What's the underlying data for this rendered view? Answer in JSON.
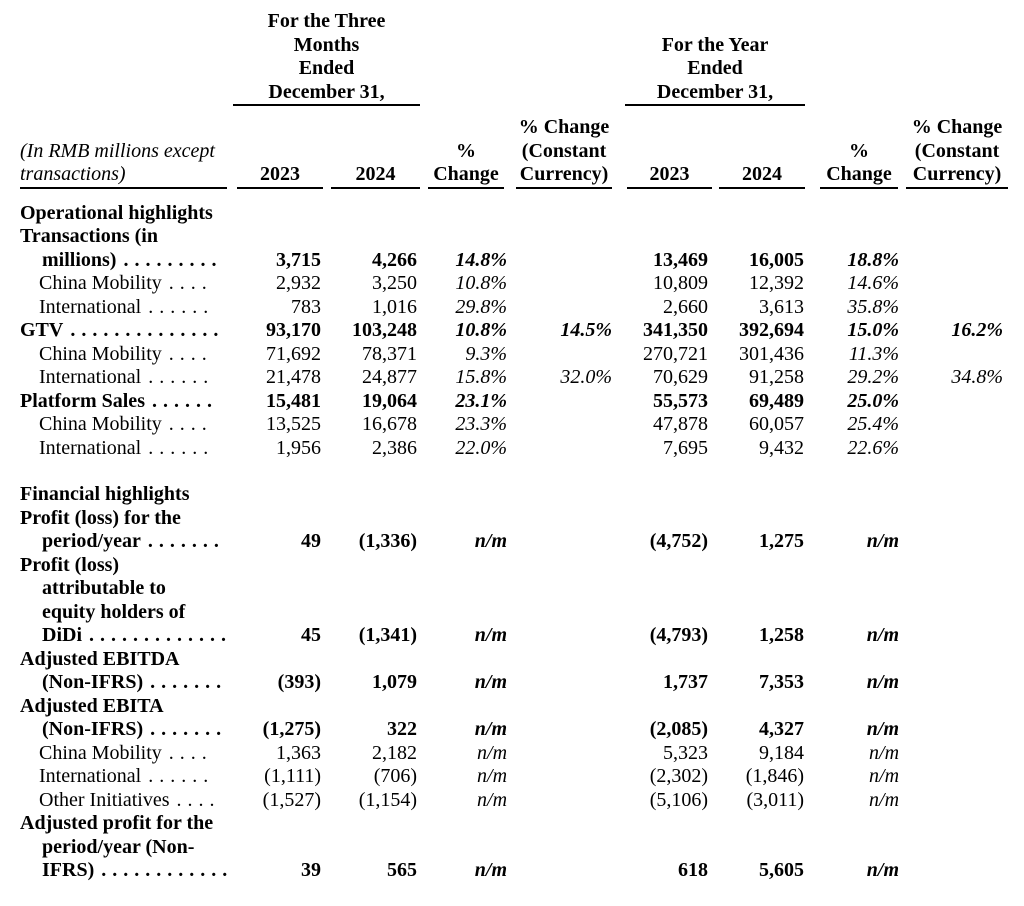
{
  "header": {
    "three_months_group": [
      "For the Three",
      "Months",
      "Ended",
      "December 31,"
    ],
    "full_year_group": [
      "For the Year",
      "Ended",
      "December 31,"
    ],
    "note_lines": [
      "(In RMB millions except",
      "transactions)"
    ],
    "q": {
      "y2023": "2023",
      "y2024": "2024",
      "pct": [
        "%",
        "Change"
      ],
      "pct_cc": [
        "% Change",
        "(Constant",
        "Currency)"
      ]
    },
    "fy": {
      "y2023": "2023",
      "y2024": "2024",
      "pct": [
        "%",
        "Change"
      ],
      "pct_cc": [
        "% Change",
        "(Constant",
        "Currency)"
      ]
    }
  },
  "rows": [
    {
      "type": "section",
      "bold": true,
      "label_lines": [
        "Operational highlights"
      ]
    },
    {
      "type": "data",
      "bold": true,
      "indent": 0,
      "label_lines": [
        "Transactions (in",
        "millions)"
      ],
      "dots": ". . . . . . . . .",
      "values": {
        "q2023": "3,715",
        "q2024": "4,266",
        "qpct": "14.8%",
        "fy2023": "13,469",
        "fy2024": "16,005",
        "fypct": "18.8%"
      }
    },
    {
      "type": "data",
      "bold": false,
      "indent": 1,
      "label_lines": [
        "China Mobility"
      ],
      "dots": ". . . .",
      "values": {
        "q2023": "2,932",
        "q2024": "3,250",
        "qpct": "10.8%",
        "fy2023": "10,809",
        "fy2024": "12,392",
        "fypct": "14.6%"
      }
    },
    {
      "type": "data",
      "bold": false,
      "indent": 1,
      "label_lines": [
        "International"
      ],
      "dots": ". . . . . .",
      "values": {
        "q2023": "783",
        "q2024": "1,016",
        "qpct": "29.8%",
        "fy2023": "2,660",
        "fy2024": "3,613",
        "fypct": "35.8%"
      }
    },
    {
      "type": "data",
      "bold": true,
      "indent": 0,
      "label_lines": [
        "GTV"
      ],
      "dots": ". . . . . . . . . . . . . .",
      "values": {
        "q2023": "93,170",
        "q2024": "103,248",
        "qpct": "10.8%",
        "qcc": "14.5%",
        "fy2023": "341,350",
        "fy2024": "392,694",
        "fypct": "15.0%",
        "fycc": "16.2%"
      }
    },
    {
      "type": "data",
      "bold": false,
      "indent": 1,
      "label_lines": [
        "China Mobility"
      ],
      "dots": ". . . .",
      "values": {
        "q2023": "71,692",
        "q2024": "78,371",
        "qpct": "9.3%",
        "fy2023": "270,721",
        "fy2024": "301,436",
        "fypct": "11.3%"
      }
    },
    {
      "type": "data",
      "bold": false,
      "indent": 1,
      "label_lines": [
        "International"
      ],
      "dots": ". . . . . .",
      "values": {
        "q2023": "21,478",
        "q2024": "24,877",
        "qpct": "15.8%",
        "qcc": "32.0%",
        "fy2023": "70,629",
        "fy2024": "91,258",
        "fypct": "29.2%",
        "fycc": "34.8%"
      }
    },
    {
      "type": "data",
      "bold": true,
      "indent": 0,
      "label_lines": [
        "Platform Sales"
      ],
      "dots": ". . . . . .",
      "values": {
        "q2023": "15,481",
        "q2024": "19,064",
        "qpct": "23.1%",
        "fy2023": "55,573",
        "fy2024": "69,489",
        "fypct": "25.0%"
      }
    },
    {
      "type": "data",
      "bold": false,
      "indent": 1,
      "label_lines": [
        "China Mobility"
      ],
      "dots": ". . . .",
      "values": {
        "q2023": "13,525",
        "q2024": "16,678",
        "qpct": "23.3%",
        "fy2023": "47,878",
        "fy2024": "60,057",
        "fypct": "25.4%"
      }
    },
    {
      "type": "data",
      "bold": false,
      "indent": 1,
      "label_lines": [
        "International"
      ],
      "dots": ". . . . . .",
      "values": {
        "q2023": "1,956",
        "q2024": "2,386",
        "qpct": "22.0%",
        "fy2023": "7,695",
        "fy2024": "9,432",
        "fypct": "22.6%"
      }
    },
    {
      "type": "spacer"
    },
    {
      "type": "section",
      "bold": true,
      "label_lines": [
        "Financial highlights"
      ]
    },
    {
      "type": "data",
      "bold": true,
      "indent": 0,
      "label_lines": [
        "Profit (loss) for the",
        "period/year"
      ],
      "dots": ". . . . . . .",
      "values": {
        "q2023": "49",
        "q2024": "(1,336)",
        "qpct": "n/m",
        "fy2023": "(4,752)",
        "fy2024": "1,275",
        "fypct": "n/m"
      }
    },
    {
      "type": "data",
      "bold": true,
      "indent": 0,
      "label_lines": [
        "Profit (loss)",
        "attributable to",
        "equity holders of",
        "DiDi"
      ],
      "dots": ". . . . . . . . . . . . .",
      "values": {
        "q2023": "45",
        "q2024": "(1,341)",
        "qpct": "n/m",
        "fy2023": "(4,793)",
        "fy2024": "1,258",
        "fypct": "n/m"
      }
    },
    {
      "type": "data",
      "bold": true,
      "indent": 0,
      "label_lines": [
        "Adjusted EBITDA",
        "(Non-IFRS)"
      ],
      "dots": ". . . . . . .",
      "values": {
        "q2023": "(393)",
        "q2024": "1,079",
        "qpct": "n/m",
        "fy2023": "1,737",
        "fy2024": "7,353",
        "fypct": "n/m"
      }
    },
    {
      "type": "data",
      "bold": true,
      "indent": 0,
      "label_lines": [
        "Adjusted EBITA",
        "(Non-IFRS)"
      ],
      "dots": ". . . . . . .",
      "values": {
        "q2023": "(1,275)",
        "q2024": "322",
        "qpct": "n/m",
        "fy2023": "(2,085)",
        "fy2024": "4,327",
        "fypct": "n/m"
      }
    },
    {
      "type": "data",
      "bold": false,
      "indent": 1,
      "label_lines": [
        "China Mobility"
      ],
      "dots": ". . . .",
      "values": {
        "q2023": "1,363",
        "q2024": "2,182",
        "qpct": "n/m",
        "fy2023": "5,323",
        "fy2024": "9,184",
        "fypct": "n/m"
      }
    },
    {
      "type": "data",
      "bold": false,
      "indent": 1,
      "label_lines": [
        "International"
      ],
      "dots": ". . . . . .",
      "values": {
        "q2023": "(1,111)",
        "q2024": "(706)",
        "qpct": "n/m",
        "fy2023": "(2,302)",
        "fy2024": "(1,846)",
        "fypct": "n/m"
      }
    },
    {
      "type": "data",
      "bold": false,
      "indent": 1,
      "label_lines": [
        "Other Initiatives"
      ],
      "dots": ". . . .",
      "values": {
        "q2023": "(1,527)",
        "q2024": "(1,154)",
        "qpct": "n/m",
        "fy2023": "(5,106)",
        "fy2024": "(3,011)",
        "fypct": "n/m"
      }
    },
    {
      "type": "data",
      "bold": true,
      "indent": 0,
      "label_lines": [
        "Adjusted profit for the",
        "period/year (Non-",
        "IFRS)"
      ],
      "dots": ". . . . . . . . . . . .",
      "values": {
        "q2023": "39",
        "q2024": "565",
        "qpct": "n/m",
        "fy2023": "618",
        "fy2024": "5,605",
        "fypct": "n/m"
      }
    }
  ]
}
